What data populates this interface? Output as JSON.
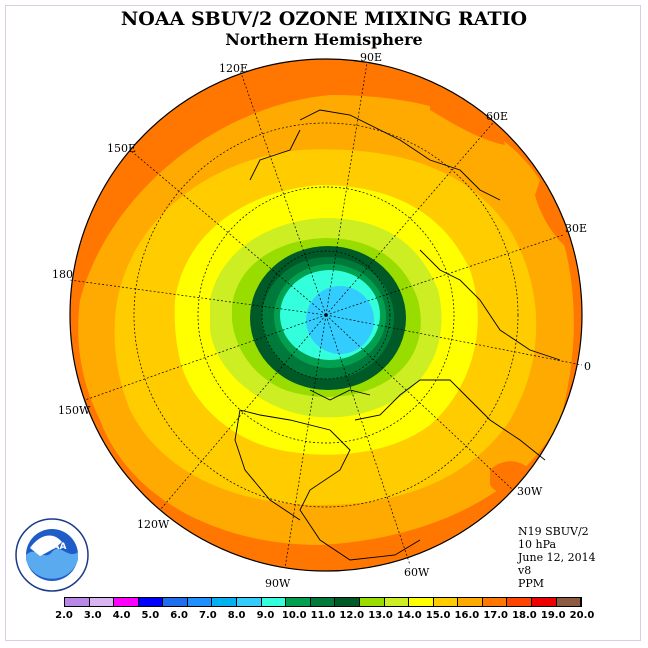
{
  "title": "NOAA SBUV/2 OZONE MIXING RATIO",
  "subtitle": "Northern Hemisphere",
  "longitude_labels": {
    "e120": "120E",
    "e90": "90E",
    "e60": "60E",
    "e30": "30E",
    "zero": "0",
    "w30": "30W",
    "w60": "60W",
    "w90": "90W",
    "w120": "120W",
    "w150": "150W",
    "d180": "180",
    "e150": "150E"
  },
  "info": {
    "instrument": "N19 SBUV/2",
    "level": "10 hPa",
    "date": "June 12, 2014",
    "version": "v8",
    "units": "PPM"
  },
  "logo": {
    "text": "NOAA",
    "icon": "noaa-logo"
  },
  "colorbar": {
    "ticks": [
      "2.0",
      "3.0",
      "4.0",
      "5.0",
      "6.0",
      "7.0",
      "8.0",
      "9.0",
      "10.0",
      "11.0",
      "12.0",
      "13.0",
      "14.0",
      "15.0",
      "16.0",
      "17.0",
      "18.0",
      "19.0",
      "20.0"
    ],
    "colors": [
      "#b987e8",
      "#d8b4f0",
      "#ff00ff",
      "#0000ff",
      "#1e6ff0",
      "#1e90ff",
      "#00b0f0",
      "#33ccff",
      "#33ffdd",
      "#00a050",
      "#007a3a",
      "#005a28",
      "#99dd00",
      "#ccee22",
      "#ffff00",
      "#ffcc00",
      "#ffaa00",
      "#ff7700",
      "#ff4400",
      "#ee0000",
      "#8b5a40"
    ]
  }
}
